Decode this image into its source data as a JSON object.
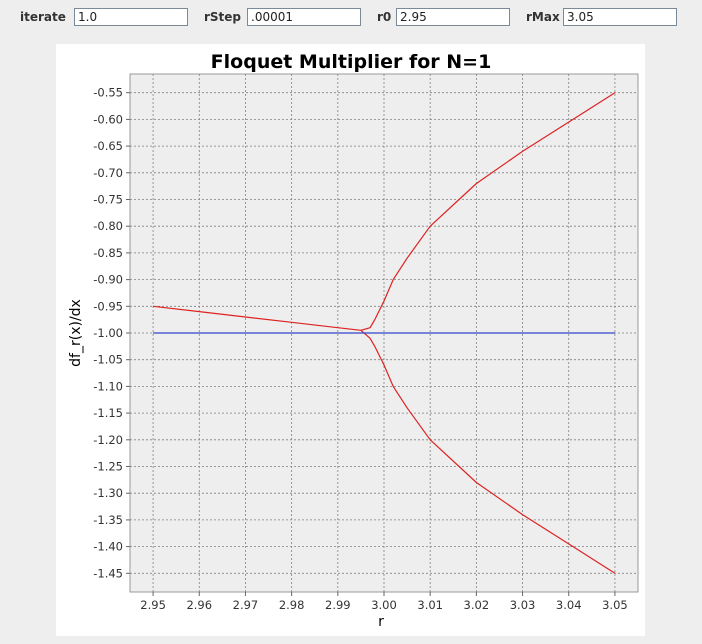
{
  "controls": {
    "iterate": {
      "label": "iterate",
      "value": "1.0"
    },
    "rStep": {
      "label": "rStep",
      "value": ".00001"
    },
    "r0": {
      "label": "r0",
      "value": "2.95"
    },
    "rMax": {
      "label": "rMax",
      "value": "3.05"
    }
  },
  "colors": {
    "upper_branch": "#dd2222",
    "lower_branch": "#dd2222",
    "reference_line": "#3344cc",
    "grid": "#808080",
    "plot_background": "#eeeeee",
    "page_background": "#eeeeee"
  },
  "chart_data": {
    "type": "line",
    "title": "Floquet Multiplier for N=1",
    "xlabel": "r",
    "ylabel": "df_r(x)/dx",
    "xlim": [
      2.945,
      3.055
    ],
    "ylim": [
      -1.485,
      -0.515
    ],
    "xticks": [
      "2.95",
      "2.96",
      "2.97",
      "2.98",
      "2.99",
      "3.00",
      "3.01",
      "3.02",
      "3.03",
      "3.04",
      "3.05"
    ],
    "yticks": [
      "-0.55",
      "-0.60",
      "-0.65",
      "-0.70",
      "-0.75",
      "-0.80",
      "-0.85",
      "-0.90",
      "-0.95",
      "-1.00",
      "-1.05",
      "-1.10",
      "-1.15",
      "-1.20",
      "-1.25",
      "-1.30",
      "-1.35",
      "-1.40",
      "-1.45"
    ],
    "grid": true,
    "series": [
      {
        "key": "upper_branch",
        "x": [
          2.95,
          2.96,
          2.97,
          2.98,
          2.99,
          2.995,
          2.997,
          2.998,
          3.0,
          3.002,
          3.005,
          3.01,
          3.02,
          3.03,
          3.04,
          3.05
        ],
        "y": [
          -0.95,
          -0.96,
          -0.97,
          -0.98,
          -0.99,
          -0.995,
          -0.99,
          -0.975,
          -0.94,
          -0.9,
          -0.86,
          -0.8,
          -0.72,
          -0.66,
          -0.605,
          -0.55
        ]
      },
      {
        "key": "lower_branch",
        "x": [
          2.995,
          2.997,
          2.998,
          3.0,
          3.002,
          3.005,
          3.01,
          3.02,
          3.03,
          3.04,
          3.05
        ],
        "y": [
          -0.995,
          -1.01,
          -1.025,
          -1.06,
          -1.1,
          -1.14,
          -1.2,
          -1.28,
          -1.34,
          -1.395,
          -1.45
        ]
      },
      {
        "key": "reference_line",
        "x": [
          2.95,
          3.05
        ],
        "y": [
          -1.0,
          -1.0
        ]
      }
    ]
  }
}
